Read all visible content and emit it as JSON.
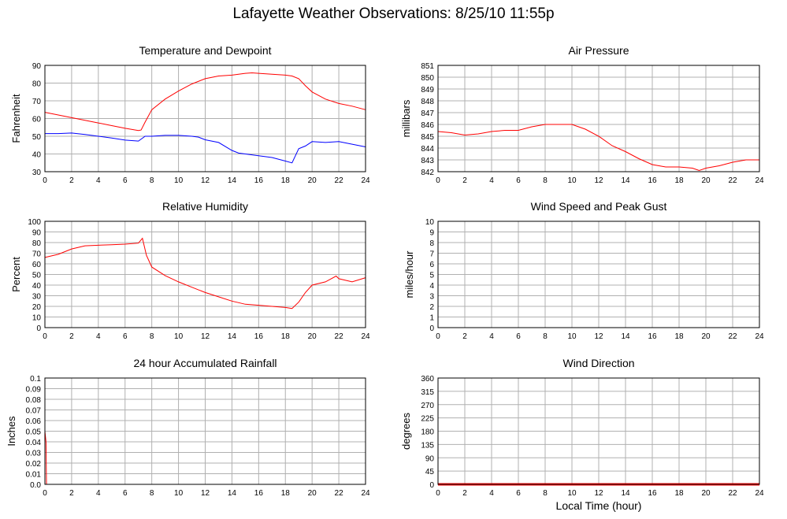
{
  "title": "Lafayette Weather Observations: 8/25/10 11:55p",
  "xlabel": "Local Time (hour)",
  "colors": {
    "red": "#ff0000",
    "blue": "#0000ff",
    "purple": "#7f007f",
    "grid": "#b0b0b0"
  },
  "chart_data": [
    {
      "id": "temp",
      "type": "line",
      "title": "Temperature and Dewpoint",
      "ylabel": "Fahrenheit",
      "xlim": [
        0,
        24
      ],
      "ylim": [
        30,
        90
      ],
      "xticks": [
        0,
        2,
        4,
        6,
        8,
        10,
        12,
        14,
        16,
        18,
        20,
        22,
        24
      ],
      "yticks": [
        30,
        40,
        50,
        60,
        70,
        80,
        90
      ],
      "grid": true,
      "series": [
        {
          "color": "#ff0000",
          "x": [
            0,
            1,
            2,
            3,
            4,
            5,
            6,
            7,
            7.2,
            7.5,
            8,
            9,
            10,
            11,
            12,
            13,
            14,
            15,
            15.5,
            16,
            17,
            18,
            18.5,
            19,
            19.5,
            20,
            21,
            22,
            23,
            24
          ],
          "y": [
            63.5,
            62,
            60.5,
            59,
            57.5,
            56,
            54.5,
            53.2,
            53.5,
            58,
            65,
            71,
            75.5,
            79.5,
            82.5,
            84,
            84.5,
            85.5,
            85.8,
            85.5,
            85,
            84.5,
            84,
            82.5,
            78.5,
            75,
            71,
            68.5,
            67,
            65
          ]
        },
        {
          "color": "#0000ff",
          "x": [
            0,
            1,
            2,
            3,
            4,
            5,
            6,
            7,
            7.5,
            8,
            9,
            10,
            11,
            11.5,
            12,
            13,
            14,
            14.5,
            15,
            16,
            17,
            18,
            18.5,
            19,
            19.5,
            20,
            21,
            22,
            23,
            24
          ],
          "y": [
            51.5,
            51.5,
            51.8,
            51,
            50,
            49,
            47.8,
            47.3,
            50,
            50,
            50.5,
            50.5,
            50,
            49.5,
            48,
            46.5,
            42,
            40.5,
            40,
            39,
            38,
            36,
            35,
            43,
            44.5,
            47,
            46.5,
            47,
            45.5,
            44
          ]
        }
      ]
    },
    {
      "id": "pressure",
      "type": "line",
      "title": "Air Pressure",
      "ylabel": "millibars",
      "xlim": [
        0,
        24
      ],
      "ylim": [
        842,
        851
      ],
      "xticks": [
        0,
        2,
        4,
        6,
        8,
        10,
        12,
        14,
        16,
        18,
        20,
        22,
        24
      ],
      "yticks": [
        842,
        843,
        844,
        845,
        846,
        847,
        848,
        849,
        850,
        851
      ],
      "grid": true,
      "series": [
        {
          "color": "#ff0000",
          "x": [
            0,
            1,
            2,
            3,
            4,
            5,
            6,
            7,
            8,
            9,
            10,
            11,
            12,
            13,
            14,
            15,
            16,
            17,
            18,
            19,
            19.5,
            20,
            21,
            22,
            23,
            24
          ],
          "y": [
            845.4,
            845.3,
            845.1,
            845.2,
            845.4,
            845.5,
            845.5,
            845.8,
            846,
            846,
            846,
            845.6,
            845,
            844.2,
            843.7,
            843.1,
            842.6,
            842.4,
            842.4,
            842.3,
            842.1,
            842.3,
            842.5,
            842.8,
            843,
            843
          ]
        }
      ]
    },
    {
      "id": "humidity",
      "type": "line",
      "title": "Relative Humidity",
      "ylabel": "Percent",
      "xlim": [
        0,
        24
      ],
      "ylim": [
        0,
        100
      ],
      "xticks": [
        0,
        2,
        4,
        6,
        8,
        10,
        12,
        14,
        16,
        18,
        20,
        22,
        24
      ],
      "yticks": [
        0,
        10,
        20,
        30,
        40,
        50,
        60,
        70,
        80,
        90,
        100
      ],
      "grid": true,
      "series": [
        {
          "color": "#ff0000",
          "x": [
            0,
            1,
            2,
            3,
            4,
            5,
            6,
            7,
            7.3,
            7.6,
            8,
            9,
            10,
            11,
            12,
            13,
            14,
            15,
            16,
            17,
            18,
            18.5,
            19,
            19.5,
            20,
            21,
            21.8,
            22,
            23,
            24
          ],
          "y": [
            66,
            69,
            74,
            77,
            77.5,
            78,
            78.5,
            79.5,
            84,
            68,
            57,
            49,
            43,
            38,
            33,
            29,
            25,
            22,
            21,
            20,
            19,
            18,
            24,
            33,
            40,
            43,
            48.5,
            46,
            43,
            47
          ]
        }
      ]
    },
    {
      "id": "wind",
      "type": "line",
      "title": "Wind Speed and Peak Gust",
      "ylabel": "miles/hour",
      "xlim": [
        0,
        24
      ],
      "ylim": [
        0,
        10
      ],
      "xticks": [
        0,
        2,
        4,
        6,
        8,
        10,
        12,
        14,
        16,
        18,
        20,
        22,
        24
      ],
      "yticks": [
        0,
        1,
        2,
        3,
        4,
        5,
        6,
        7,
        8,
        9,
        10
      ],
      "grid": true,
      "series": [
        {
          "color": "#7f007f",
          "x": [
            0,
            24
          ],
          "y": [
            0,
            0
          ]
        }
      ]
    },
    {
      "id": "rain",
      "type": "line",
      "title": "24 hour Accumulated Rainfall",
      "ylabel": "Inches",
      "xlim": [
        0,
        24
      ],
      "ylim": [
        0,
        0.1
      ],
      "xticks": [
        0,
        2,
        4,
        6,
        8,
        10,
        12,
        14,
        16,
        18,
        20,
        22,
        24
      ],
      "yticks": [
        0.0,
        0.01,
        0.02,
        0.03,
        0.04,
        0.05,
        0.06,
        0.07,
        0.08,
        0.09,
        0.1
      ],
      "ytick_labels": [
        "0.0",
        "0.01",
        "0.02",
        "0.03",
        "0.04",
        "0.05",
        "0.06",
        "0.07",
        "0.08",
        "0.09",
        "0.1"
      ],
      "grid": true,
      "series": [
        {
          "color": "#ff0000",
          "x": [
            0,
            0.08,
            0.12,
            24
          ],
          "y": [
            0.05,
            0.04,
            0,
            0
          ]
        }
      ]
    },
    {
      "id": "direction",
      "type": "line",
      "title": "Wind Direction",
      "ylabel": "degrees",
      "xlim": [
        0,
        24
      ],
      "ylim": [
        0,
        360
      ],
      "xticks": [
        0,
        2,
        4,
        6,
        8,
        10,
        12,
        14,
        16,
        18,
        20,
        22,
        24
      ],
      "yticks": [
        0,
        45,
        90,
        135,
        180,
        225,
        270,
        315,
        360
      ],
      "grid": true,
      "series": [
        {
          "color": "#ff0000",
          "x": [
            0,
            24
          ],
          "y": [
            0,
            0
          ],
          "thick": true
        }
      ]
    }
  ]
}
